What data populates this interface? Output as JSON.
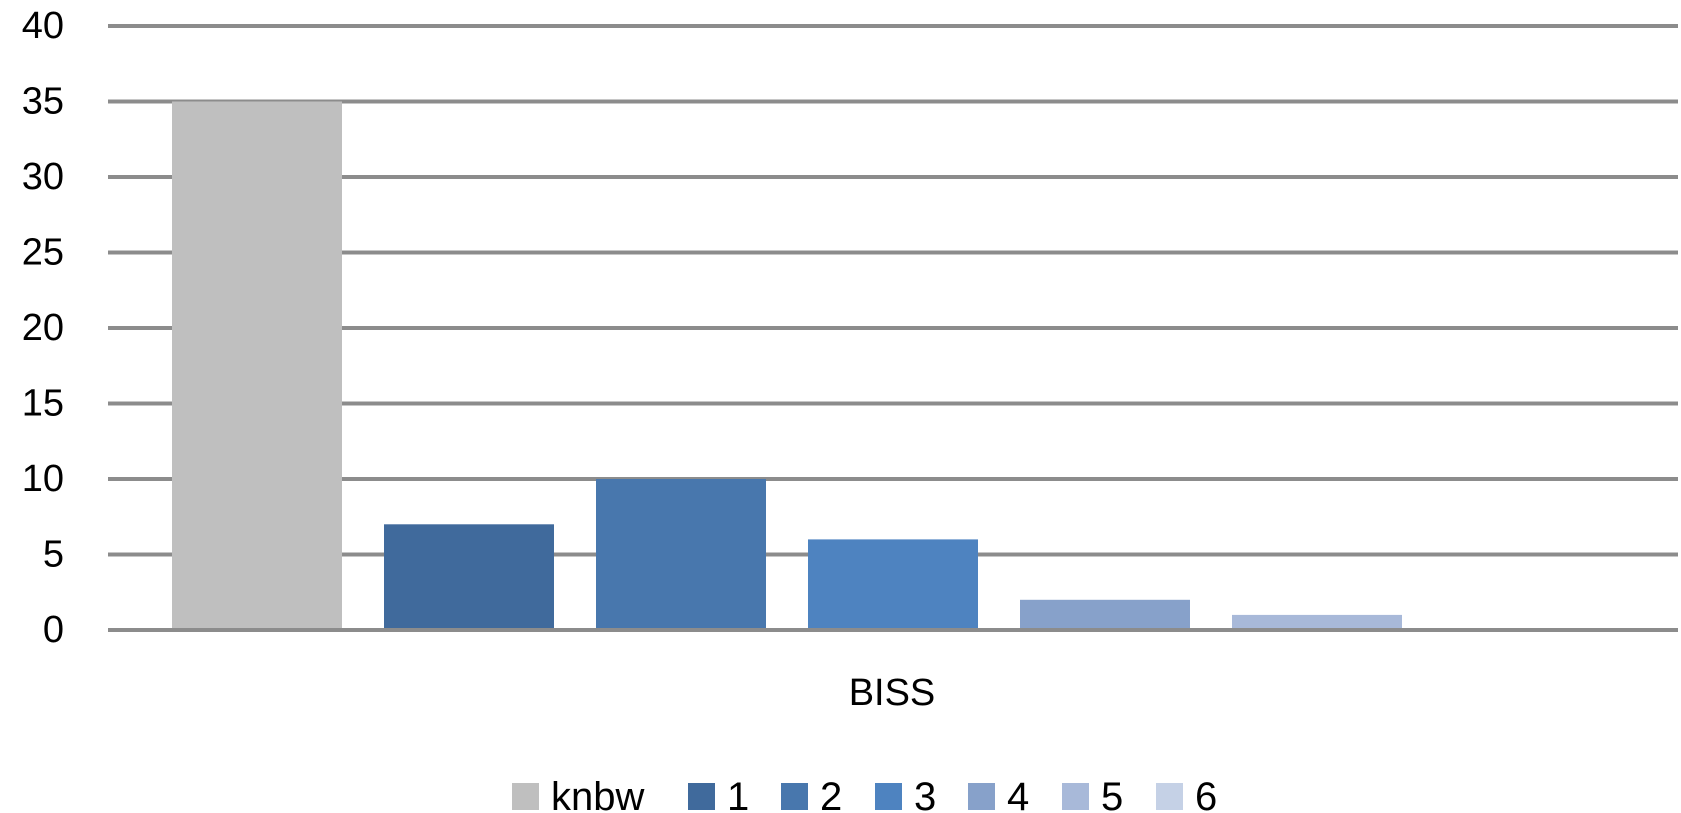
{
  "chart_data": {
    "type": "bar",
    "title": "",
    "xlabel": "",
    "ylabel": "",
    "categories": [
      "BISS"
    ],
    "series": [
      {
        "name": "knbw",
        "values": [
          35
        ],
        "color": "#bfbfbf"
      },
      {
        "name": "1",
        "values": [
          7
        ],
        "color": "#406a9c"
      },
      {
        "name": "2",
        "values": [
          10
        ],
        "color": "#4877ad"
      },
      {
        "name": "3",
        "values": [
          6
        ],
        "color": "#4e83c0"
      },
      {
        "name": "4",
        "values": [
          2
        ],
        "color": "#87a1ca"
      },
      {
        "name": "5",
        "values": [
          1
        ],
        "color": "#a8b9d9"
      },
      {
        "name": "6",
        "values": [
          0
        ],
        "color": "#c5d1e6"
      }
    ],
    "ylim": [
      0,
      40
    ],
    "yticks": [
      0,
      5,
      10,
      15,
      20,
      25,
      30,
      35,
      40
    ],
    "grid": true,
    "legend_position": "bottom"
  }
}
